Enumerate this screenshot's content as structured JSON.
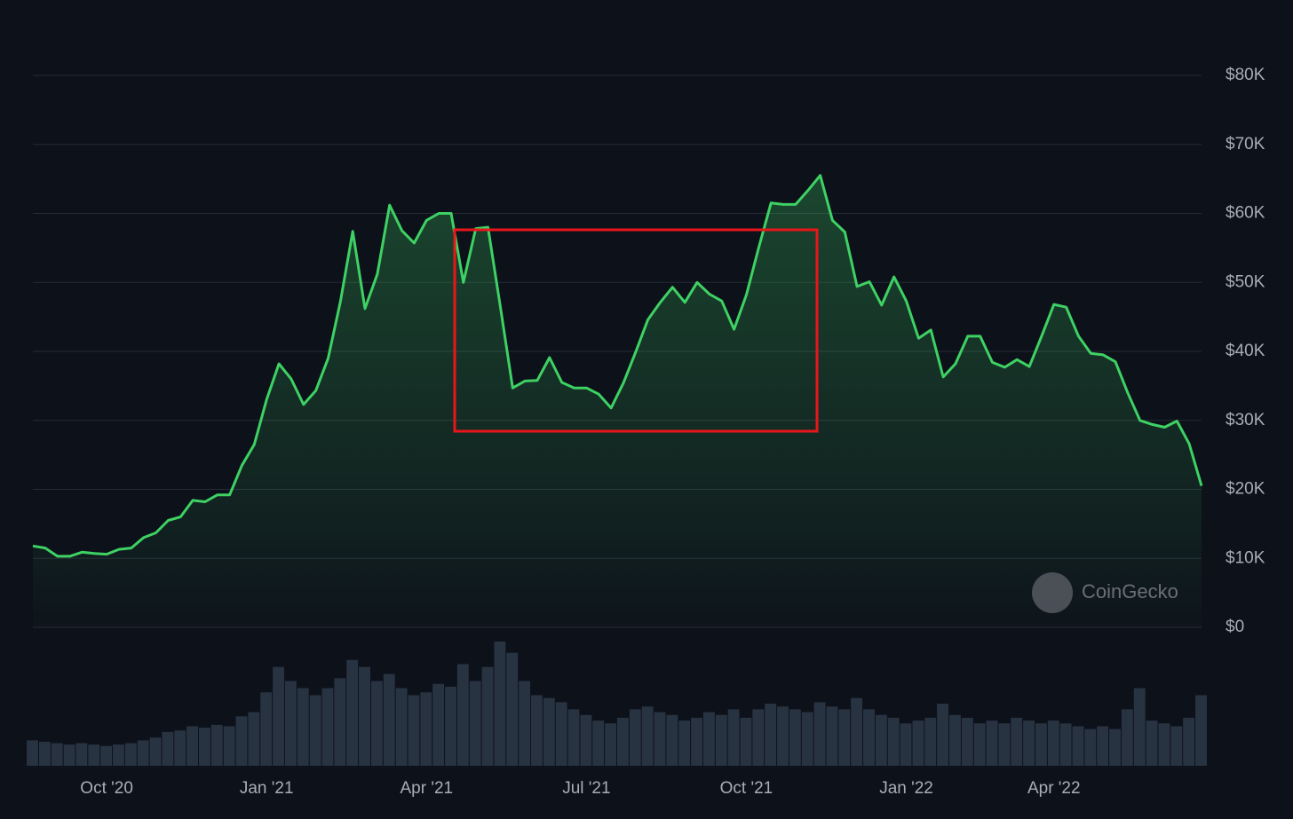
{
  "chart_data": {
    "type": "line",
    "watermark": "CoinGecko",
    "color": "#3ed163",
    "grid": true,
    "categories": [
      null,
      null,
      null,
      null,
      null,
      null,
      "Oct '20",
      null,
      null,
      null,
      null,
      null,
      null,
      null,
      null,
      null,
      null,
      null,
      null,
      "Jan '21",
      null,
      null,
      null,
      null,
      null,
      null,
      null,
      null,
      null,
      null,
      null,
      null,
      "Apr '21",
      null,
      null,
      null,
      null,
      null,
      null,
      null,
      null,
      null,
      null,
      null,
      null,
      "Jul '21",
      null,
      null,
      null,
      null,
      null,
      null,
      null,
      null,
      null,
      null,
      null,
      null,
      "Oct '21",
      null,
      null,
      null,
      null,
      null,
      null,
      null,
      null,
      null,
      null,
      null,
      null,
      "Jan '22",
      null,
      null,
      null,
      null,
      null,
      null,
      null,
      null,
      null,
      null,
      null,
      "Apr '22",
      null,
      null,
      null,
      null,
      null,
      null,
      null,
      null,
      null,
      null,
      null,
      null
    ],
    "values": [
      11800,
      11500,
      10300,
      10300,
      10900,
      10700,
      10600,
      11300,
      11500,
      13000,
      13700,
      15500,
      16000,
      18400,
      18200,
      19200,
      19200,
      23500,
      26500,
      33000,
      38200,
      36000,
      32300,
      34300,
      39000,
      47200,
      57400,
      46200,
      51200,
      61200,
      57500,
      55700,
      59000,
      60000,
      60000,
      50000,
      57800,
      58000,
      46500,
      34700,
      35700,
      35800,
      39100,
      35500,
      34700,
      34700,
      33800,
      31800,
      35400,
      39900,
      44600,
      47100,
      49300,
      47100,
      50000,
      48300,
      47300,
      43200,
      48200,
      55000,
      61500,
      61300,
      61300,
      63300,
      65500,
      59000,
      57300,
      49400,
      50100,
      46700,
      50800,
      47300,
      41900,
      43100,
      36300,
      38200,
      42200,
      42200,
      38400,
      37700,
      38800,
      37800,
      42200,
      46800,
      46400,
      42200,
      39700,
      39500,
      38500,
      34000,
      30000,
      29400,
      29000,
      29900,
      26600,
      20500
    ],
    "volumes": [
      18,
      17,
      16,
      15,
      16,
      15,
      14,
      15,
      16,
      18,
      20,
      24,
      25,
      28,
      27,
      29,
      28,
      35,
      38,
      52,
      70,
      60,
      55,
      50,
      55,
      62,
      75,
      70,
      60,
      65,
      55,
      50,
      52,
      58,
      56,
      72,
      60,
      70,
      88,
      80,
      60,
      50,
      48,
      45,
      40,
      36,
      32,
      30,
      34,
      40,
      42,
      38,
      36,
      32,
      34,
      38,
      36,
      40,
      34,
      40,
      44,
      42,
      40,
      38,
      45,
      42,
      40,
      48,
      40,
      36,
      34,
      30,
      32,
      34,
      44,
      36,
      34,
      30,
      32,
      30,
      34,
      32,
      30,
      32,
      30,
      28,
      26,
      28,
      26,
      40,
      55,
      32,
      30,
      28,
      34,
      50
    ],
    "ylim": [
      0,
      80000
    ],
    "yticks": [
      {
        "value": 0,
        "label": "$0"
      },
      {
        "value": 10000,
        "label": "$10K"
      },
      {
        "value": 20000,
        "label": "$20K"
      },
      {
        "value": 30000,
        "label": "$30K"
      },
      {
        "value": 40000,
        "label": "$40K"
      },
      {
        "value": 50000,
        "label": "$50K"
      },
      {
        "value": 60000,
        "label": "$60K"
      },
      {
        "value": 70000,
        "label": "$70K"
      },
      {
        "value": 80000,
        "label": "$80K"
      }
    ]
  }
}
